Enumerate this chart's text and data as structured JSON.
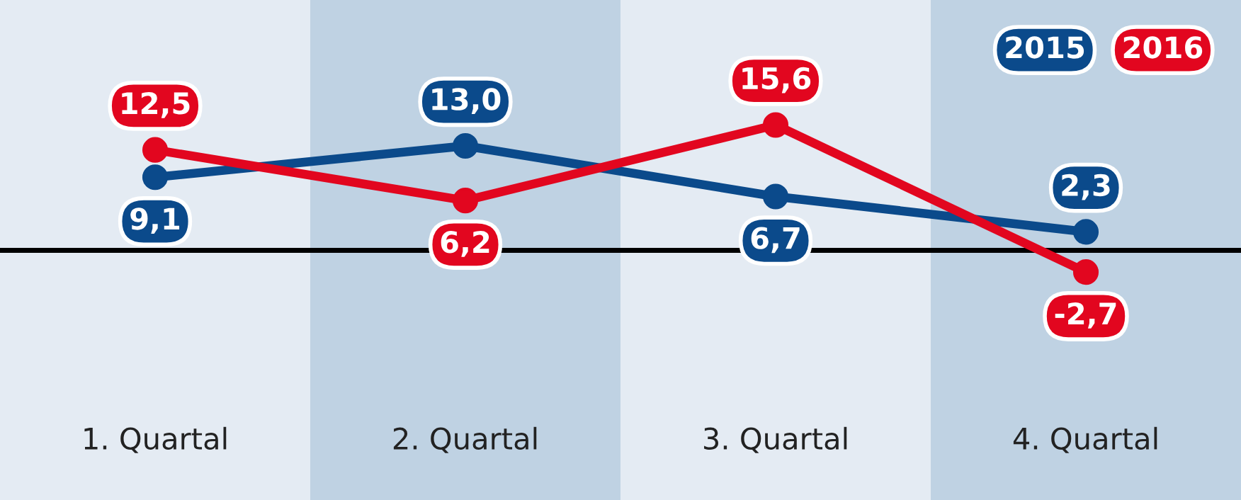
{
  "chart_data": {
    "type": "line",
    "categories": [
      "1. Quartal",
      "2. Quartal",
      "3. Quartal",
      "4. Quartal"
    ],
    "series": [
      {
        "name": "2015",
        "color": "#0b4a8b",
        "values": [
          9.1,
          13.0,
          6.7,
          2.3
        ],
        "value_labels": [
          "9,1",
          "13,0",
          "6,7",
          "2,3"
        ]
      },
      {
        "name": "2016",
        "color": "#e2061f",
        "values": [
          12.5,
          6.2,
          15.6,
          -2.7
        ],
        "value_labels": [
          "12,5",
          "6,2",
          "15,6",
          "-2,7"
        ]
      }
    ],
    "marker": "circle",
    "line_style": "solid",
    "legend": "top right",
    "tick_labels": "x"
  }
}
